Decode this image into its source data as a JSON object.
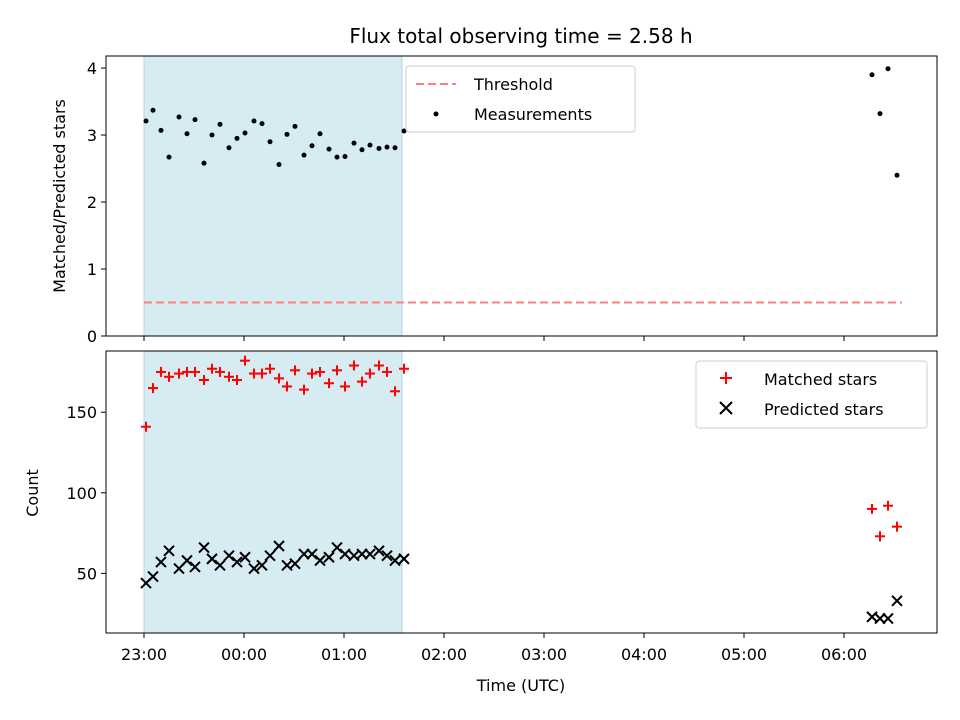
{
  "chart_data": [
    {
      "type": "scatter",
      "title": "Flux total observing time = 2.58 h",
      "xlabel": "",
      "ylabel": "Matched/Predicted stars",
      "xlim_hours": [
        -0.38,
        7.93
      ],
      "ylim": [
        0,
        4.18
      ],
      "yticks": [
        0,
        1,
        2,
        3,
        4
      ],
      "shaded_interval_hours": [
        0.0,
        2.58
      ],
      "shade_color": "#add8e6",
      "legend_position": "upper center",
      "threshold": {
        "name": "Threshold",
        "value": 0.5,
        "x_hours": [
          0.0,
          7.58
        ],
        "color": "#ff7f7f",
        "style": "dashed"
      },
      "series": [
        {
          "name": "Measurements",
          "color": "#000000",
          "marker": "dot",
          "points": [
            [
              0.02,
              3.21
            ],
            [
              0.09,
              3.37
            ],
            [
              0.17,
              3.07
            ],
            [
              0.25,
              2.67
            ],
            [
              0.35,
              3.27
            ],
            [
              0.43,
              3.02
            ],
            [
              0.51,
              3.23
            ],
            [
              0.6,
              2.58
            ],
            [
              0.68,
              3.0
            ],
            [
              0.76,
              3.16
            ],
            [
              0.85,
              2.81
            ],
            [
              0.93,
              2.95
            ],
            [
              1.01,
              3.03
            ],
            [
              1.1,
              3.21
            ],
            [
              1.18,
              3.17
            ],
            [
              1.26,
              2.9
            ],
            [
              1.35,
              2.56
            ],
            [
              1.43,
              3.01
            ],
            [
              1.51,
              3.13
            ],
            [
              1.6,
              2.7
            ],
            [
              1.68,
              2.84
            ],
            [
              1.76,
              3.02
            ],
            [
              1.85,
              2.79
            ],
            [
              1.93,
              2.67
            ],
            [
              2.01,
              2.68
            ],
            [
              2.1,
              2.88
            ],
            [
              2.18,
              2.78
            ],
            [
              2.26,
              2.85
            ],
            [
              2.35,
              2.8
            ],
            [
              2.43,
              2.82
            ],
            [
              2.51,
              2.81
            ],
            [
              2.6,
              3.06
            ],
            [
              7.28,
              3.9
            ],
            [
              7.36,
              3.32
            ],
            [
              7.44,
              3.99
            ],
            [
              7.53,
              2.4
            ]
          ]
        }
      ]
    },
    {
      "type": "scatter",
      "title": "",
      "xlabel": "Time (UTC)",
      "ylabel": "Count",
      "xlim_hours": [
        -0.38,
        7.93
      ],
      "ylim": [
        13,
        188
      ],
      "yticks": [
        50,
        100,
        150
      ],
      "shaded_interval_hours": [
        0.0,
        2.58
      ],
      "shade_color": "#add8e6",
      "legend_position": "upper right",
      "xtick_values_hours": [
        0,
        1,
        2,
        3,
        4,
        5,
        6,
        7
      ],
      "xtick_labels": [
        "23:00",
        "00:00",
        "01:00",
        "02:00",
        "03:00",
        "04:00",
        "05:00",
        "06:00"
      ],
      "series": [
        {
          "name": "Matched stars",
          "color": "#ff0000",
          "marker": "plus",
          "points": [
            [
              0.02,
              141
            ],
            [
              0.09,
              165
            ],
            [
              0.17,
              175
            ],
            [
              0.25,
              172
            ],
            [
              0.35,
              174
            ],
            [
              0.43,
              175
            ],
            [
              0.51,
              175
            ],
            [
              0.6,
              170
            ],
            [
              0.68,
              177
            ],
            [
              0.76,
              175
            ],
            [
              0.85,
              172
            ],
            [
              0.93,
              170
            ],
            [
              1.01,
              182
            ],
            [
              1.1,
              174
            ],
            [
              1.18,
              174
            ],
            [
              1.26,
              177
            ],
            [
              1.35,
              171
            ],
            [
              1.43,
              166
            ],
            [
              1.51,
              176
            ],
            [
              1.6,
              164
            ],
            [
              1.68,
              174
            ],
            [
              1.76,
              175
            ],
            [
              1.85,
              168
            ],
            [
              1.93,
              176
            ],
            [
              2.01,
              166
            ],
            [
              2.1,
              179
            ],
            [
              2.18,
              169
            ],
            [
              2.26,
              174
            ],
            [
              2.35,
              179
            ],
            [
              2.43,
              175
            ],
            [
              2.51,
              163
            ],
            [
              2.6,
              177
            ],
            [
              7.28,
              90
            ],
            [
              7.36,
              73
            ],
            [
              7.44,
              92
            ],
            [
              7.53,
              79
            ]
          ]
        },
        {
          "name": "Predicted stars",
          "color": "#000000",
          "marker": "x",
          "points": [
            [
              0.02,
              44
            ],
            [
              0.09,
              48
            ],
            [
              0.17,
              57
            ],
            [
              0.25,
              64
            ],
            [
              0.35,
              53
            ],
            [
              0.43,
              58
            ],
            [
              0.51,
              54
            ],
            [
              0.6,
              66
            ],
            [
              0.68,
              59
            ],
            [
              0.76,
              55
            ],
            [
              0.85,
              61
            ],
            [
              0.93,
              57
            ],
            [
              1.01,
              60
            ],
            [
              1.1,
              53
            ],
            [
              1.18,
              55
            ],
            [
              1.26,
              61
            ],
            [
              1.35,
              67
            ],
            [
              1.43,
              55
            ],
            [
              1.51,
              56
            ],
            [
              1.6,
              62
            ],
            [
              1.68,
              62
            ],
            [
              1.76,
              58
            ],
            [
              1.85,
              60
            ],
            [
              1.93,
              66
            ],
            [
              2.01,
              62
            ],
            [
              2.1,
              61
            ],
            [
              2.18,
              62
            ],
            [
              2.26,
              62
            ],
            [
              2.35,
              64
            ],
            [
              2.43,
              61
            ],
            [
              2.51,
              58
            ],
            [
              2.6,
              59
            ],
            [
              7.28,
              23
            ],
            [
              7.36,
              22
            ],
            [
              7.44,
              22
            ],
            [
              7.53,
              33
            ]
          ]
        }
      ]
    }
  ]
}
